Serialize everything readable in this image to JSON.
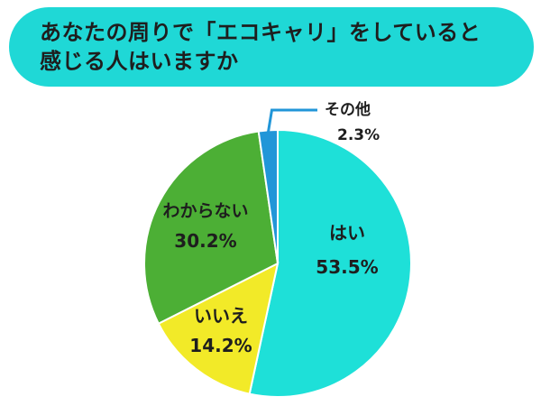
{
  "title_lines": [
    "あなたの周りで「エコキャリ」をしていると",
    "感じる人はいますか"
  ],
  "colors": {
    "title_bg": "#1fd8d6",
    "yes": "#1ee0d8",
    "no": "#f2ea28",
    "unknown": "#4caf35",
    "other": "#2196d8",
    "border": "#ffffff"
  },
  "chart_data": {
    "type": "pie",
    "title": "あなたの周りで「エコキャリ」をしていると感じる人はいますか",
    "slices": [
      {
        "label": "はい",
        "value": 53.5,
        "value_label": "53.5%",
        "color": "#1ee0d8"
      },
      {
        "label": "いいえ",
        "value": 14.2,
        "value_label": "14.2%",
        "color": "#f2ea28"
      },
      {
        "label": "わからない",
        "value": 30.2,
        "value_label": "30.2%",
        "color": "#4caf35"
      },
      {
        "label": "その他",
        "value": 2.3,
        "value_label": "2.3%",
        "color": "#2196d8"
      }
    ],
    "start": "top",
    "direction": "clockwise",
    "legend": "none"
  }
}
